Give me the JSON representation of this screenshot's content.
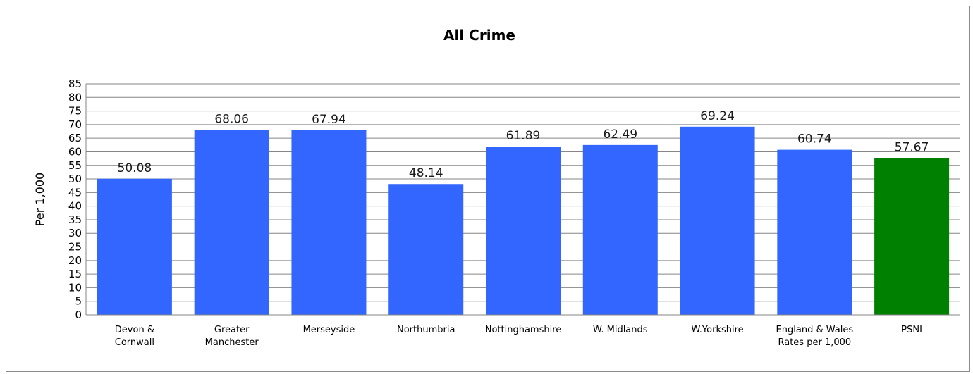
{
  "chart_data": {
    "type": "bar",
    "title": "All Crime",
    "xlabel": "",
    "ylabel": "Per 1,000",
    "ylim": [
      0,
      85
    ],
    "ytick_step": 5,
    "grid": true,
    "legend": "none",
    "categories": [
      [
        "Devon &",
        "Cornwall"
      ],
      [
        "Greater",
        "Manchester"
      ],
      [
        "Merseyside"
      ],
      [
        "Northumbria"
      ],
      [
        "Nottinghamshire"
      ],
      [
        "W. Midlands"
      ],
      [
        "W.Yorkshire"
      ],
      [
        "England & Wales",
        "Rates per 1,000"
      ],
      [
        "PSNI"
      ]
    ],
    "values": [
      50.08,
      68.06,
      67.94,
      48.14,
      61.89,
      62.49,
      69.24,
      60.74,
      57.67
    ],
    "data_labels": [
      "50.08",
      "68.06",
      "67.94",
      "48.14",
      "61.89",
      "62.49",
      "69.24",
      "60.74",
      "57.67"
    ],
    "colors": {
      "default_bar": "#3366ff",
      "highlight_bar": "#008000",
      "highlight_index": 8,
      "grid": "#868686"
    }
  }
}
